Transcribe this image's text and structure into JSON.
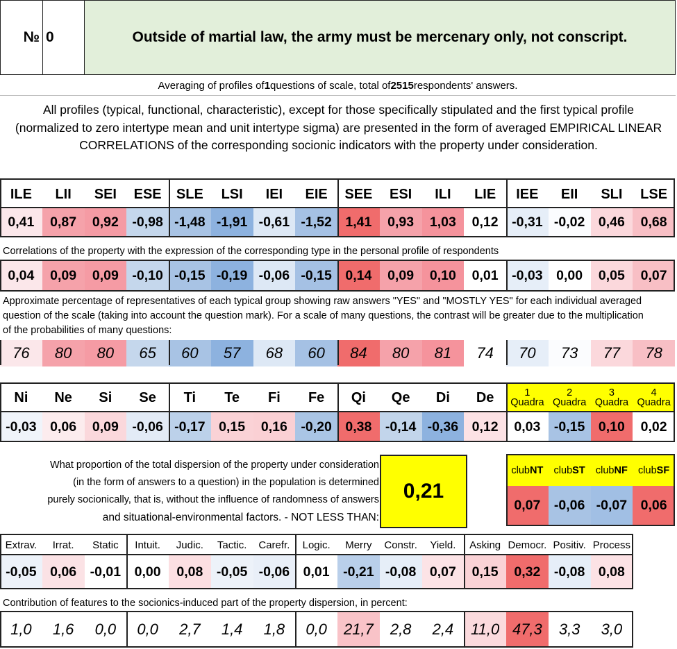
{
  "header": {
    "number_label": "№",
    "number": "0",
    "title": "Outside of martial law, the army must be mercenary only, not conscript."
  },
  "summary": {
    "pre": "Averaging of profiles of ",
    "count": "1",
    "mid": " questions of scale, total of ",
    "total": "2515",
    "post": " respondents' answers."
  },
  "paragraph": "All profiles (typical, functional, characteristic), except for those specifically stipulated and the first typical profile (normalized to zero intertype mean and unit intertype sigma) are presented in the form of averaged EMPIRICAL LINEAR CORRELATIONS of the corresponding socionic indicators with the property under consideration.",
  "types": [
    "ILE",
    "LII",
    "SEI",
    "ESE",
    "SLE",
    "LSI",
    "IEI",
    "EIE",
    "SEE",
    "ESI",
    "ILI",
    "LIE",
    "IEE",
    "EII",
    "SLI",
    "LSE"
  ],
  "typical_profile": [
    "0,41",
    "0,87",
    "0,92",
    "-0,98",
    "-1,48",
    "-1,91",
    "-0,61",
    "-1,52",
    "1,41",
    "0,93",
    "1,03",
    "0,12",
    "-0,31",
    "-0,02",
    "0,46",
    "0,68"
  ],
  "correlations_note": "Correlations of the property with the expression of the corresponding type in the personal profile of respondents",
  "correlations": [
    "0,04",
    "0,09",
    "0,09",
    "-0,10",
    "-0,15",
    "-0,19",
    "-0,06",
    "-0,15",
    "0,14",
    "0,09",
    "0,10",
    "0,01",
    "-0,03",
    "0,00",
    "0,05",
    "0,07"
  ],
  "percentage_note": "Approximate percentage of representatives of each typical group showing raw answers \"YES\" and \"MOSTLY YES\" for each individual averaged question of the scale (taking into account the question mark). For a scale of many questions, the contrast will be greater due to the multiplication of the probabilities of many questions:",
  "percentages": [
    "76",
    "80",
    "80",
    "65",
    "60",
    "57",
    "68",
    "60",
    "84",
    "80",
    "81",
    "74",
    "70",
    "73",
    "77",
    "78"
  ],
  "functions": [
    "Ni",
    "Ne",
    "Si",
    "Se",
    "Ti",
    "Te",
    "Fi",
    "Fe",
    "Qi",
    "Qe",
    "Di",
    "De"
  ],
  "function_values": [
    "-0,03",
    "0,06",
    "0,09",
    "-0,06",
    "-0,17",
    "0,15",
    "0,16",
    "-0,20",
    "0,38",
    "-0,14",
    "-0,36",
    "0,12"
  ],
  "quadras": [
    {
      "num": "1",
      "label": "Quadra",
      "value": "0,03"
    },
    {
      "num": "2",
      "label": "Quadra",
      "value": "-0,15"
    },
    {
      "num": "3",
      "label": "Quadra",
      "value": "0,10"
    },
    {
      "num": "4",
      "label": "Quadra",
      "value": "0,02"
    }
  ],
  "dispersion": {
    "lines": [
      "What proportion of the total dispersion of the property under consideration",
      "(in the form of answers to a question) in the population is determined",
      "purely socionically, that is, without the influence of randomness of answers",
      "and situational-environmental factors. - NOT LESS THAN:"
    ],
    "value": "0,21"
  },
  "clubs": [
    {
      "prefix": "club",
      "code": "NT",
      "value": "0,07"
    },
    {
      "prefix": "club",
      "code": "ST",
      "value": "-0,06"
    },
    {
      "prefix": "club",
      "code": "NF",
      "value": "-0,07"
    },
    {
      "prefix": "club",
      "code": "SF",
      "value": "0,06"
    }
  ],
  "traits": [
    "Extrav.",
    "Irrat.",
    "Static",
    "Intuit.",
    "Judic.",
    "Tactic.",
    "Carefr.",
    "Logic.",
    "Merry",
    "Constr.",
    "Yield.",
    "Asking",
    "Democr.",
    "Positiv.",
    "Process"
  ],
  "trait_values": [
    "-0,05",
    "0,06",
    "-0,01",
    "0,00",
    "0,08",
    "-0,05",
    "-0,06",
    "0,01",
    "-0,21",
    "-0,08",
    "0,07",
    "0,15",
    "0,32",
    "-0,08",
    "0,08"
  ],
  "contribution_note": "Contribution of features to the socionics-induced part of the property dispersion, in percent:",
  "contributions": [
    "1,0",
    "1,6",
    "0,0",
    "0,0",
    "2,7",
    "1,4",
    "1,8",
    "0,0",
    "21,7",
    "2,8",
    "2,4",
    "11,0",
    "47,3",
    "3,3",
    "3,0"
  ],
  "colors": {
    "type_row": [
      "#fbe7ea",
      "#f5a2aa",
      "#f59ba4",
      "#c5d7ec",
      "#a8c3e4",
      "#8db2df",
      "#dde8f5",
      "#a5c1e4",
      "#f06c6c",
      "#f5a2aa",
      "#f5939c",
      "#ffffff",
      "#e6eef8",
      "#fbfcfe",
      "#fbd8dc",
      "#f8bfc5"
    ],
    "corr_row": [
      "#fbe7ea",
      "#f5a2aa",
      "#f59ba4",
      "#c5d7ec",
      "#a8c3e4",
      "#8db2df",
      "#dde8f5",
      "#a5c1e4",
      "#f06c6c",
      "#f5a2aa",
      "#f5939c",
      "#ffffff",
      "#e6eef8",
      "#ffffff",
      "#fbd8dc",
      "#f8bfc5"
    ],
    "pct_row": [
      "#fbe7ea",
      "#f5a2aa",
      "#f59ba4",
      "#c5d7ec",
      "#a8c3e4",
      "#8db2df",
      "#dde8f5",
      "#a5c1e4",
      "#f06c6c",
      "#f5a2aa",
      "#f5939c",
      "#ffffff",
      "#e6eef8",
      "#fbfcfe",
      "#fbd8dc",
      "#f8bfc5"
    ],
    "func_row": [
      "#f0f4fa",
      "#fcecee",
      "#fbd8dc",
      "#e3ebf6",
      "#bcd1ea",
      "#fad2d6",
      "#fad0d4",
      "#aac5e5",
      "#f06c6c",
      "#c2d5eb",
      "#8db2df",
      "#fce2e5"
    ],
    "quadra_row": [
      "#ffffff",
      "#a8c3e4",
      "#f06c6c",
      "#ffffff"
    ],
    "club_row": [
      "#f06c6c",
      "#a8c3e4",
      "#a1bfe4",
      "#f06c6c"
    ],
    "trait_row": [
      "#edf2f9",
      "#fbe2e5",
      "#ffffff",
      "#ffffff",
      "#fcdfe2",
      "#edf2f9",
      "#e9eff8",
      "#ffffff",
      "#b9cfea",
      "#e6eef8",
      "#fce3e6",
      "#fad2d6",
      "#f06c6c",
      "#e6eef8",
      "#fce2e5"
    ],
    "contrib_row": [
      "#ffffff",
      "#ffffff",
      "#ffffff",
      "#ffffff",
      "#ffffff",
      "#ffffff",
      "#ffffff",
      "#ffffff",
      "#f9c3c8",
      "#ffffff",
      "#ffffff",
      "#fbdadd",
      "#f06c6c",
      "#ffffff",
      "#ffffff"
    ],
    "title_bg": "#e2efda",
    "highlight_yellow": "#ffff00"
  }
}
